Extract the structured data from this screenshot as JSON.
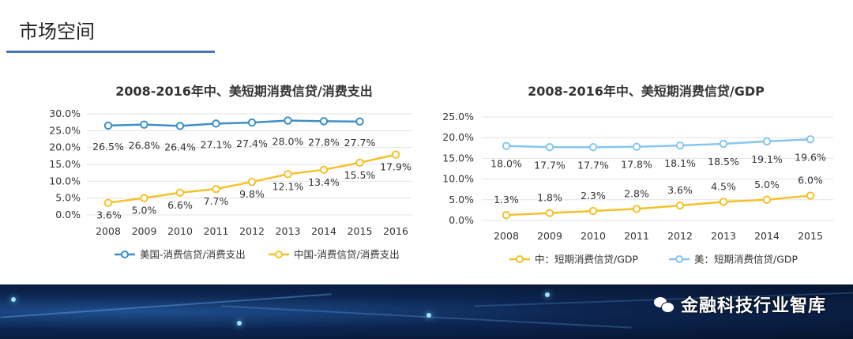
{
  "slide_title": "市场空间",
  "watermark": {
    "text": "金融科技行业智库",
    "icon": "wechat-icon"
  },
  "colors": {
    "blue": "#3c8fca",
    "light_blue": "#86c6ee",
    "orange": "#f5c12b",
    "underline": "#4a74b4"
  },
  "chart_data": [
    {
      "type": "line",
      "title": "2008-2016年中、美短期消费信贷/消费支出",
      "categories": [
        "2008",
        "2009",
        "2010",
        "2011",
        "2012",
        "2013",
        "2014",
        "2015",
        "2016"
      ],
      "y_ticks": [
        "30.0%",
        "25.0%",
        "20.0%",
        "15.0%",
        "10.0%",
        "5.0%",
        "0.0%"
      ],
      "ylim": [
        0,
        30
      ],
      "grid": true,
      "legend_position": "bottom",
      "series": [
        {
          "name": "美国-消费信贷/消费支出",
          "color": "#3c8fca",
          "values": [
            26.5,
            26.8,
            26.4,
            27.1,
            27.4,
            28.0,
            27.8,
            27.7,
            null
          ],
          "labels": [
            "26.5%",
            "26.8%",
            "26.4%",
            "27.1%",
            "27.4%",
            "28.0%",
            "27.8%",
            "27.7%",
            ""
          ]
        },
        {
          "name": "中国-消费信贷/消费支出",
          "color": "#f5c12b",
          "values": [
            3.6,
            5.0,
            6.6,
            7.7,
            9.8,
            12.1,
            13.4,
            15.5,
            17.9
          ],
          "labels": [
            "3.6%",
            "5.0%",
            "6.6%",
            "7.7%",
            "9.8%",
            "12.1%",
            "13.4%",
            "15.5%",
            "17.9%"
          ]
        }
      ]
    },
    {
      "type": "line",
      "title": "2008-2016年中、美短期消费信贷/GDP",
      "categories": [
        "2008",
        "2009",
        "2010",
        "2011",
        "2012",
        "2013",
        "2014",
        "2015"
      ],
      "y_ticks": [
        "25.0%",
        "20.0%",
        "15.0%",
        "10.0%",
        "5.0%",
        "0.0%"
      ],
      "ylim": [
        0,
        25
      ],
      "grid": true,
      "legend_position": "bottom",
      "series": [
        {
          "name": "中：短期消费信贷/GDP",
          "color": "#f5c12b",
          "values": [
            1.3,
            1.8,
            2.3,
            2.8,
            3.6,
            4.5,
            5.0,
            6.0
          ],
          "labels": [
            "1.3%",
            "1.8%",
            "2.3%",
            "2.8%",
            "3.6%",
            "4.5%",
            "5.0%",
            "6.0%"
          ]
        },
        {
          "name": "美：短期消费信贷/GDP",
          "color": "#86c6ee",
          "values": [
            18.0,
            17.7,
            17.7,
            17.8,
            18.1,
            18.5,
            19.1,
            19.6
          ],
          "labels": [
            "18.0%",
            "17.7%",
            "17.7%",
            "17.8%",
            "18.1%",
            "18.5%",
            "19.1%",
            "19.6%"
          ]
        }
      ]
    }
  ]
}
